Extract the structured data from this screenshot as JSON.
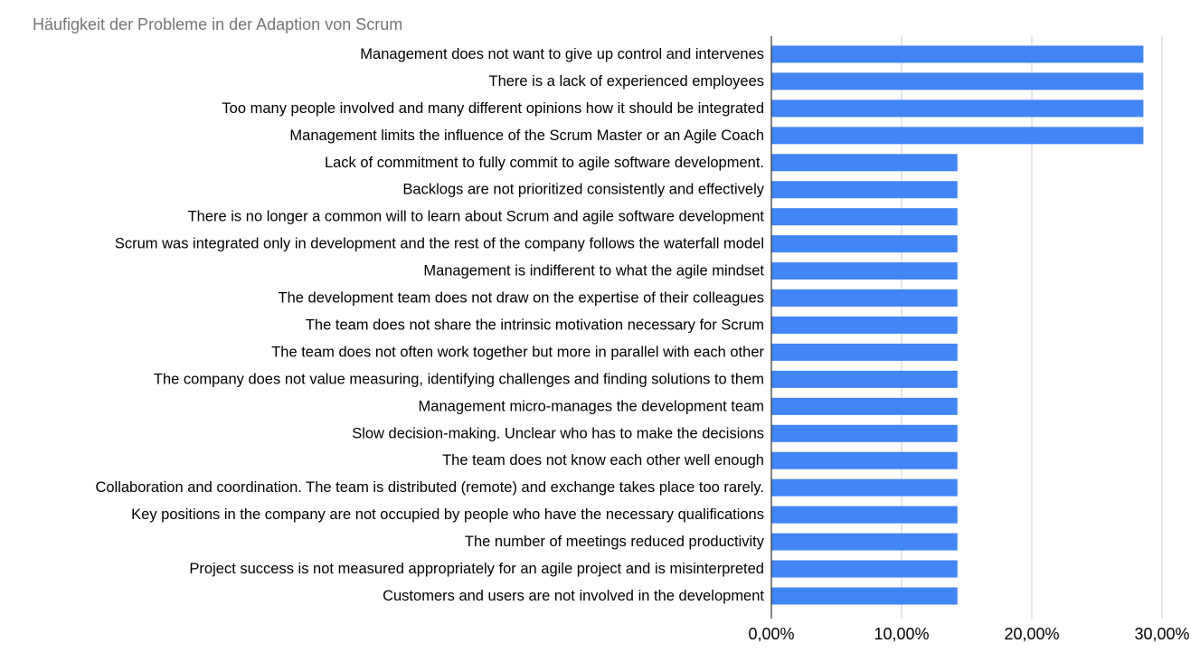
{
  "chart_data": {
    "type": "bar",
    "orientation": "horizontal",
    "title": "Häufigkeit der Probleme in der Adaption von Scrum",
    "xlabel": "",
    "ylabel": "",
    "categories": [
      "Management does not want to give up control and intervenes",
      "There is a lack of experienced employees",
      "Too many people involved and many different opinions how it should be integrated",
      "Management limits the influence of the Scrum Master or an Agile Coach",
      "Lack of commitment to fully commit to agile software development.",
      "Backlogs are not prioritized consistently and effectively",
      "There is no longer a common will to learn about Scrum and agile software development",
      "Scrum was integrated only in development and the rest of the company follows the waterfall model",
      "Management is indifferent to what the agile mindset",
      "The development team does not draw on the expertise of their colleagues",
      "The team does not share the intrinsic motivation necessary for Scrum",
      "The team does not often work together but more in parallel with each other",
      "The company does not value measuring, identifying challenges and finding solutions to them",
      "Management micro-manages the development team",
      "Slow decision-making. Unclear who has to make the decisions",
      "The team does not know each other well enough",
      "Collaboration and coordination. The team is distributed (remote) and exchange takes place too rarely.",
      "Key positions in the company are not occupied by people who have the necessary qualifications",
      "The number of meetings reduced productivity",
      "Project success is not measured appropriately for an agile project and is misinterpreted",
      "Customers and users are not involved in the development"
    ],
    "values": [
      28.57,
      28.57,
      28.57,
      28.57,
      14.29,
      14.29,
      14.29,
      14.29,
      14.29,
      14.29,
      14.29,
      14.29,
      14.29,
      14.29,
      14.29,
      14.29,
      14.29,
      14.29,
      14.29,
      14.29,
      14.29
    ],
    "xlim": [
      0,
      30
    ],
    "xticks": [
      0,
      10,
      20,
      30
    ],
    "xtick_labels": [
      "0,00%",
      "10,00%",
      "20,00%",
      "30,00%"
    ],
    "grid": true,
    "legend": "none",
    "bar_color": "#4285f4",
    "grid_color": "#cccccc",
    "axis_color": "#333333"
  }
}
